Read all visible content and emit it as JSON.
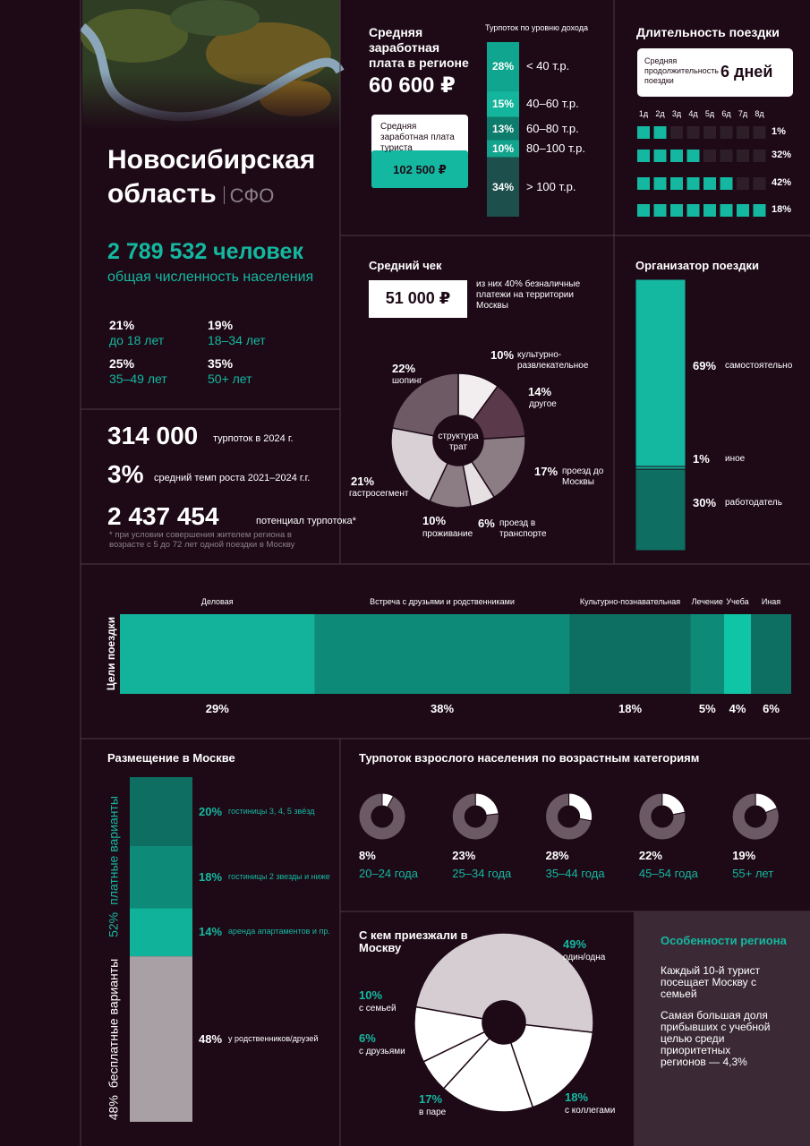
{
  "region": {
    "title": "Новосибирская область",
    "district": "СФО",
    "population": "2 789 532 человек",
    "population_label": "общая численность населения",
    "age_groups": {
      "shares": [
        "21%",
        "19%",
        "25%",
        "35%"
      ],
      "labels": [
        "до 18 лет",
        "18–34 лет",
        "35–49 лет",
        "50+ лет"
      ]
    }
  },
  "flow": {
    "tourists": "314 000",
    "tourists_label": "турпоток в 2024 г.",
    "growth": "3%",
    "growth_label": "средний темп роста 2021–2024 г.г.",
    "potential": "2 437 454",
    "potential_label": "потенциал турпотока*",
    "footnote": "* при условии совершения жителем региона в возрасте с 5 до 72 лет одной поездки в Москву"
  },
  "salary": {
    "title": "Средняя заработная плата в регионе",
    "value": "60 600 ₽",
    "tourist_label": "Средняя заработная плата туриста",
    "tourist_value": "102 500 ₽",
    "income": {
      "title": "Турпоток по уровню дохода",
      "values": [
        28,
        15,
        13,
        10,
        34
      ],
      "value_labels": [
        "28%",
        "15%",
        "13%",
        "10%",
        "34%"
      ],
      "labels": [
        "< 40 т.р.",
        "40–60 т.р.",
        "60–80 т.р.",
        "80–100 т.р.",
        "> 100 т.р."
      ],
      "colors": [
        "#10a58e",
        "#13b59c",
        "#0e7c6c",
        "#12a48d",
        "#1d4f4c"
      ]
    }
  },
  "duration": {
    "title": "Длительность поездки",
    "average_label": "Средняя продолжительность поездки",
    "average_value": "6 дней",
    "days": [
      "1д",
      "2д",
      "3д",
      "4д",
      "5д",
      "6д",
      "7д",
      "8д"
    ],
    "shares": [
      "1%",
      "32%",
      "42%",
      "18%"
    ]
  },
  "spending": {
    "title": "Средний чек",
    "value": "51 000 ₽",
    "note": "из них 40% безналичные платежи на территории Москвы",
    "center_label": "структура трат",
    "values": [
      10,
      14,
      17,
      6,
      10,
      21,
      22
    ],
    "value_labels": [
      "10%",
      "14%",
      "17%",
      "6%",
      "10%",
      "21%",
      "22%"
    ],
    "labels": [
      "культурно-развлекательное",
      "другое",
      "проезд до Москвы",
      "проезд в транспорте",
      "проживание",
      "гастросегмент",
      "шопинг"
    ],
    "colors": [
      "#f2eef0",
      "#5a3a4a",
      "#8c7c84",
      "#e6e0e3",
      "#8c7c84",
      "#d8d0d5",
      "#6e5a64"
    ]
  },
  "organizer": {
    "title": "Организатор поездки",
    "values": [
      69,
      1,
      30
    ],
    "value_labels": [
      "69%",
      "1%",
      "30%"
    ],
    "labels": [
      "самостоятельно",
      "иное",
      "работодатель"
    ],
    "colors": [
      "#14b8a0",
      "#14b8a0",
      "#0e6e62"
    ]
  },
  "purposes": {
    "title": "Цели поездки",
    "labels": [
      "Деловая",
      "Встреча с друзьями и родственниками",
      "Культурно-познавательная",
      "Лечение",
      "Учеба",
      "Иная"
    ],
    "values": [
      29,
      38,
      18,
      5,
      4,
      6
    ],
    "value_labels": [
      "29%",
      "38%",
      "18%",
      "5%",
      "4%",
      "6%"
    ],
    "colors": [
      "#12b39a",
      "#0e8a78",
      "#0d6e62",
      "#0e8a78",
      "#10c4a6",
      "#0d6e62"
    ]
  },
  "accommodation": {
    "title": "Размещение в Москве",
    "values": [
      20,
      18,
      14,
      48
    ],
    "value_labels": [
      "20%",
      "18%",
      "14%",
      "48%"
    ],
    "labels": [
      "гостиницы 3, 4, 5 звёзд",
      "гостиницы 2 звезды и ниже",
      "аренда апартаментов и пр.",
      "у родственников/друзей"
    ],
    "colors": [
      "#0e6e62",
      "#0e8a78",
      "#10b39a",
      "#a8a0a5"
    ],
    "groups": {
      "shares": [
        "52%",
        "48%"
      ],
      "labels": [
        "платные варианты",
        "бесплатные варианты"
      ]
    }
  },
  "age_flow": {
    "title": "Турпоток взрослого населения по возрастным категориям",
    "values": [
      8,
      23,
      28,
      22,
      19
    ],
    "value_labels": [
      "8%",
      "23%",
      "28%",
      "22%",
      "19%"
    ],
    "labels": [
      "20–24 года",
      "25–34 года",
      "35–44 года",
      "45–54 года",
      "55+ лет"
    ]
  },
  "companions": {
    "title": "С кем приезжали в Москву",
    "values": [
      49,
      18,
      17,
      6,
      10
    ],
    "value_labels": [
      "49%",
      "18%",
      "17%",
      "6%",
      "10%"
    ],
    "labels": [
      "один/одна",
      "с коллегами",
      "в паре",
      "с друзьями",
      "с семьей"
    ],
    "colors": [
      "#d6cdd3",
      "#ffffff",
      "#ffffff",
      "#ffffff",
      "#ffffff"
    ]
  },
  "features": {
    "title": "Особенности региона",
    "items": [
      "Каждый 10-й турист посещает Москву с семьей",
      "Самая большая доля прибывших с учебной целью среди приоритетных регионов — 4,3%"
    ]
  }
}
